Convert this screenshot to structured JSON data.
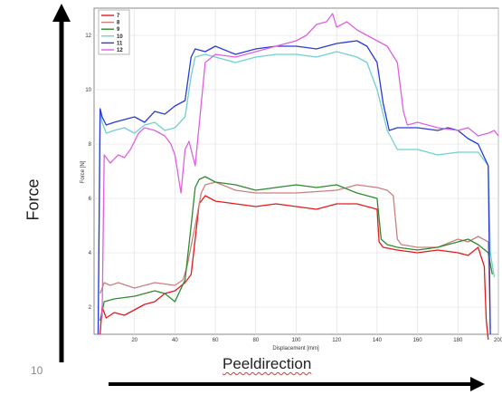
{
  "slide": {
    "number": "10",
    "force_arrow_label": "Force",
    "direction_arrow_label": "Peeldirection"
  },
  "chart_data": {
    "type": "line",
    "xlabel": "Displacement [mm]",
    "ylabel": "Force [N]",
    "xlim": [
      0,
      200
    ],
    "ylim": [
      1,
      13
    ],
    "xticks": [
      20,
      40,
      60,
      80,
      100,
      120,
      140,
      160,
      180,
      200
    ],
    "yticks": [
      2,
      4,
      6,
      8,
      10,
      12
    ],
    "grid": true,
    "legend_position": "top-left",
    "series": [
      {
        "name": "7",
        "color": "#e31a1c",
        "x": [
          3,
          4,
          6,
          10,
          15,
          20,
          25,
          30,
          35,
          40,
          45,
          48,
          50,
          52,
          55,
          60,
          70,
          80,
          90,
          100,
          110,
          120,
          130,
          135,
          140,
          141,
          143,
          150,
          160,
          170,
          180,
          185,
          190,
          193,
          194,
          195
        ],
        "y": [
          1.0,
          2.0,
          1.6,
          1.8,
          1.7,
          1.9,
          2.1,
          2.2,
          2.5,
          2.6,
          2.9,
          3.2,
          4.5,
          5.8,
          6.1,
          5.9,
          5.8,
          5.7,
          5.8,
          5.7,
          5.6,
          5.8,
          5.8,
          5.7,
          5.6,
          4.4,
          4.2,
          4.1,
          4.0,
          4.1,
          4.0,
          3.9,
          4.2,
          3.5,
          1.5,
          0.8
        ]
      },
      {
        "name": "8",
        "color": "#c98080",
        "x": [
          3,
          5,
          8,
          12,
          20,
          30,
          40,
          44,
          46,
          50,
          53,
          55,
          60,
          70,
          80,
          100,
          120,
          130,
          140,
          145,
          148,
          150,
          152,
          160,
          170,
          180,
          185,
          190,
          195,
          196
        ],
        "y": [
          2.5,
          2.9,
          2.8,
          2.9,
          2.7,
          2.9,
          2.8,
          3.0,
          3.5,
          5.0,
          6.2,
          6.5,
          6.6,
          6.3,
          6.2,
          6.2,
          6.3,
          6.5,
          6.4,
          6.3,
          6.1,
          4.5,
          4.3,
          4.2,
          4.2,
          4.5,
          4.4,
          4.6,
          4.4,
          1.2
        ]
      },
      {
        "name": "9",
        "color": "#2e8b2e",
        "x": [
          3,
          5,
          10,
          20,
          30,
          35,
          40,
          45,
          48,
          50,
          52,
          55,
          60,
          70,
          80,
          90,
          100,
          110,
          120,
          130,
          140,
          142,
          145,
          150,
          160,
          170,
          180,
          185,
          190,
          195,
          197
        ],
        "y": [
          1.5,
          2.2,
          2.3,
          2.4,
          2.6,
          2.5,
          2.2,
          3.0,
          5.0,
          6.4,
          6.7,
          6.8,
          6.6,
          6.5,
          6.3,
          6.4,
          6.5,
          6.4,
          6.5,
          6.2,
          6.0,
          4.5,
          4.3,
          4.2,
          4.1,
          4.2,
          4.4,
          4.5,
          4.3,
          4.0,
          3.2
        ]
      },
      {
        "name": "10",
        "color": "#70d0d0",
        "x": [
          2,
          3,
          4,
          6,
          10,
          15,
          20,
          25,
          30,
          35,
          40,
          45,
          48,
          50,
          55,
          60,
          70,
          80,
          90,
          100,
          110,
          120,
          130,
          135,
          140,
          145,
          150,
          160,
          170,
          180,
          190,
          195,
          196,
          198
        ],
        "y": [
          1.0,
          9.3,
          8.8,
          8.4,
          8.5,
          8.6,
          8.4,
          8.7,
          8.8,
          8.5,
          8.6,
          9.0,
          10.5,
          11.2,
          11.3,
          11.2,
          11.0,
          11.2,
          11.3,
          11.3,
          11.2,
          11.4,
          11.2,
          11.0,
          10.0,
          8.5,
          7.8,
          7.8,
          7.6,
          7.7,
          7.7,
          7.2,
          4.0,
          3.1
        ]
      },
      {
        "name": "11",
        "color": "#2b3ad6",
        "x": [
          2,
          3,
          4,
          6,
          10,
          15,
          20,
          25,
          30,
          35,
          40,
          45,
          48,
          50,
          55,
          60,
          70,
          80,
          90,
          100,
          110,
          120,
          130,
          135,
          140,
          143,
          146,
          150,
          160,
          170,
          175,
          180,
          185,
          190,
          195,
          196
        ],
        "y": [
          1.0,
          9.3,
          9.0,
          8.7,
          8.8,
          8.9,
          9.0,
          8.8,
          9.2,
          9.1,
          9.4,
          9.6,
          11.2,
          11.5,
          11.4,
          11.6,
          11.3,
          11.5,
          11.6,
          11.6,
          11.5,
          11.7,
          11.8,
          11.6,
          11.0,
          9.5,
          8.5,
          8.6,
          8.6,
          8.5,
          8.6,
          8.5,
          8.2,
          8.0,
          7.2,
          1.0
        ]
      },
      {
        "name": "12",
        "color": "#e060e0",
        "x": [
          4,
          5,
          8,
          12,
          15,
          18,
          22,
          25,
          30,
          35,
          38,
          40,
          43,
          45,
          47,
          50,
          55,
          60,
          70,
          80,
          90,
          100,
          105,
          110,
          115,
          118,
          120,
          125,
          130,
          140,
          145,
          150,
          153,
          155,
          160,
          170,
          180,
          185,
          190,
          195,
          198,
          200
        ],
        "y": [
          1.6,
          7.6,
          7.3,
          7.6,
          7.5,
          7.8,
          8.4,
          8.6,
          8.5,
          8.3,
          8.0,
          7.6,
          6.2,
          7.8,
          8.1,
          7.2,
          11.0,
          11.3,
          11.2,
          11.4,
          11.6,
          11.8,
          12.0,
          12.4,
          12.5,
          12.8,
          12.3,
          12.5,
          12.2,
          11.8,
          11.6,
          11.0,
          9.2,
          8.7,
          8.8,
          8.6,
          8.5,
          8.6,
          8.3,
          8.4,
          8.5,
          8.3
        ]
      }
    ]
  }
}
